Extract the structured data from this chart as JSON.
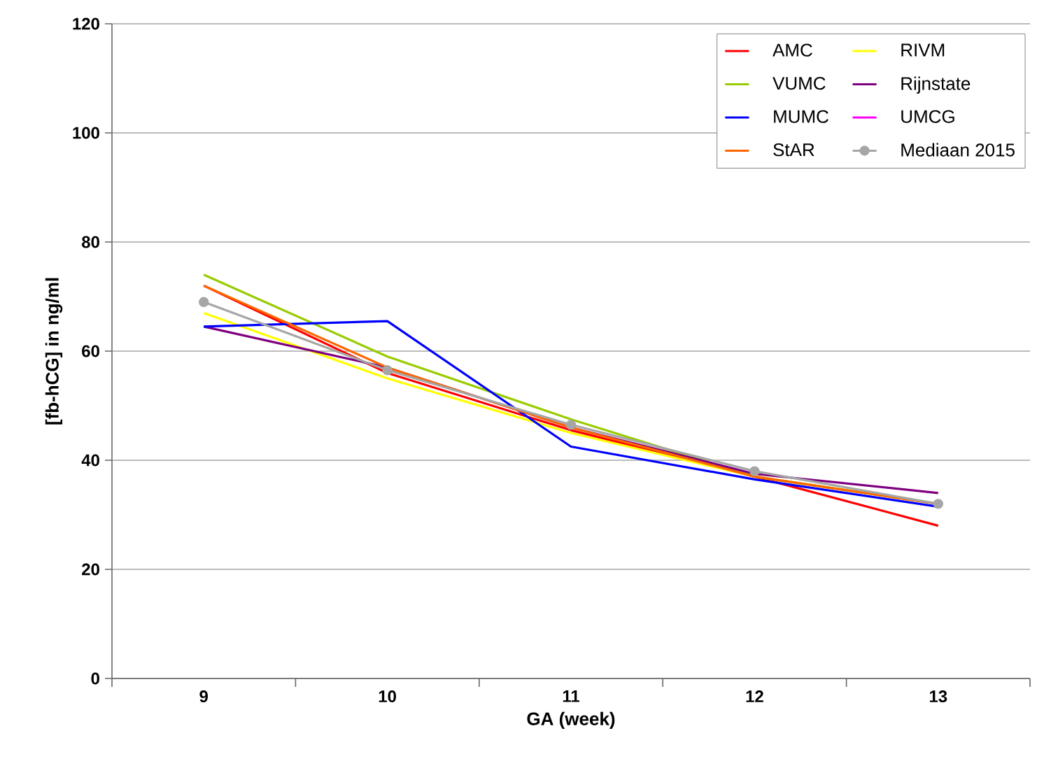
{
  "chart_data": {
    "type": "line",
    "xlabel": "GA (week)",
    "ylabel": "[fb-hCG] in ng/ml",
    "categories": [
      "9",
      "10",
      "11",
      "12",
      "13"
    ],
    "ylim": [
      0,
      120
    ],
    "yticks": [
      0,
      20,
      40,
      60,
      80,
      100,
      120
    ],
    "grid": "y",
    "legend": "top right",
    "series": [
      {
        "name": "AMC",
        "color": "#ff0000",
        "values": [
          72,
          56,
          45.5,
          37,
          28
        ]
      },
      {
        "name": "RIVM",
        "color": "#ffff00",
        "values": [
          67,
          55,
          45,
          37,
          32
        ]
      },
      {
        "name": "VUMC",
        "color": "#99cc00",
        "values": [
          74,
          59,
          47.5,
          37,
          32
        ]
      },
      {
        "name": "Rijnstate",
        "color": "#800080",
        "values": [
          64.5,
          57,
          46,
          37.5,
          34
        ]
      },
      {
        "name": "MUMC",
        "color": "#0000ff",
        "values": [
          64.5,
          65.5,
          42.5,
          36.5,
          31.5
        ]
      },
      {
        "name": "UMCG",
        "color": "#ff00ff",
        "values": [
          null,
          null,
          null,
          null,
          null
        ]
      },
      {
        "name": "StAR",
        "color": "#ff6600",
        "values": [
          72,
          57,
          46,
          37,
          32
        ]
      },
      {
        "name": "Mediaan 2015",
        "color": "#a6a6a6",
        "marker": "circle",
        "values": [
          69,
          56.5,
          46.5,
          38,
          32
        ]
      }
    ]
  }
}
